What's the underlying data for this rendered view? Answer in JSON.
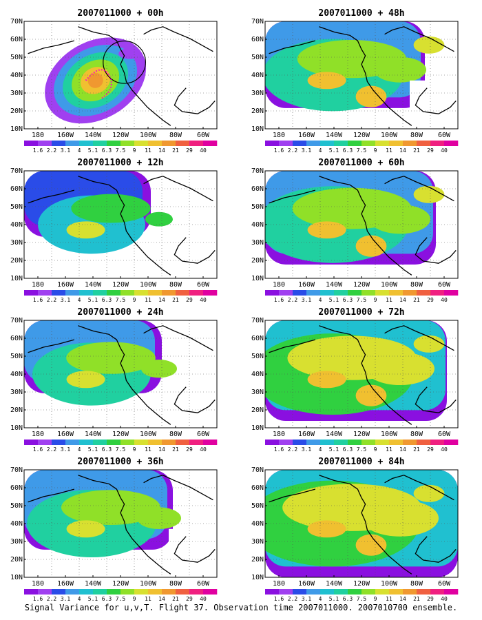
{
  "caption": "Signal Variance for u,v,T. Flight 37. Observation time 2007011000. 2007010700 ensemble.",
  "x_ticks": [
    "180",
    "160W",
    "140W",
    "120W",
    "100W",
    "80W",
    "60W"
  ],
  "y_ticks": [
    "10N",
    "20N",
    "30N",
    "40N",
    "50N",
    "60N",
    "70N"
  ],
  "colorbar": {
    "labels": [
      "1.6",
      "2.2",
      "3.1",
      "4",
      "5.1",
      "6.3",
      "7.5",
      "9",
      "11",
      "14",
      "21",
      "29",
      "40"
    ],
    "colors": [
      "#8a10e0",
      "#a040f0",
      "#2a4ce8",
      "#3f9ae8",
      "#20c0d0",
      "#20d0a0",
      "#30d040",
      "#90e028",
      "#d8e030",
      "#f0c030",
      "#f09830",
      "#f06040",
      "#f02080",
      "#e000a0"
    ]
  },
  "panels": [
    {
      "title": "2007011000 + 00h",
      "lead_hours": 0,
      "observation_marker": "dotted magenta flight track with circle over US west coast"
    },
    {
      "title": "2007011000 + 12h",
      "lead_hours": 12
    },
    {
      "title": "2007011000 + 24h",
      "lead_hours": 24
    },
    {
      "title": "2007011000 + 36h",
      "lead_hours": 36
    },
    {
      "title": "2007011000 + 48h",
      "lead_hours": 48
    },
    {
      "title": "2007011000 + 60h",
      "lead_hours": 60
    },
    {
      "title": "2007011000 + 72h",
      "lead_hours": 72
    },
    {
      "title": "2007011000 + 84h",
      "lead_hours": 84
    }
  ]
}
